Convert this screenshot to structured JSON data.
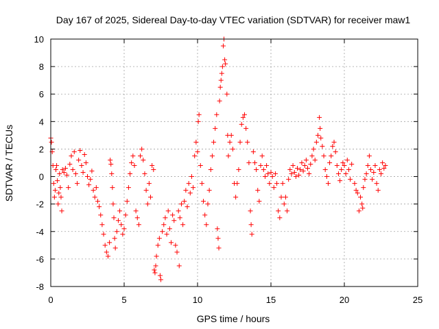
{
  "chart_data": {
    "type": "scatter",
    "title": "Day 167 of 2025, Sidereal Day-to-day VTEC variation (SDTVAR) for receiver maw1",
    "xlabel": "GPS time / hours",
    "ylabel": "SDTVAR / TECUs",
    "xlim": [
      0,
      25
    ],
    "ylim": [
      -8,
      10
    ],
    "xticks": [
      0,
      5,
      10,
      15,
      20,
      25
    ],
    "yticks": [
      -8,
      -6,
      -4,
      -2,
      0,
      2,
      4,
      6,
      8,
      10
    ],
    "xtick_labels": [
      "0",
      "5",
      "10",
      "15",
      "20",
      "25"
    ],
    "ytick_labels": [
      "-8",
      "-6",
      "-4",
      "-2",
      "0",
      "2",
      "4",
      "6",
      "8",
      "10"
    ],
    "grid": true,
    "marker": "+",
    "color": "#ff0000",
    "series": [
      {
        "name": "SDTVAR",
        "points": [
          [
            0.0,
            2.8
          ],
          [
            0.05,
            2.5
          ],
          [
            0.1,
            1.8
          ],
          [
            0.15,
            0.8
          ],
          [
            0.2,
            -0.5
          ],
          [
            0.25,
            -1.5
          ],
          [
            0.3,
            -1.0
          ],
          [
            0.35,
            0.5
          ],
          [
            0.4,
            0.8
          ],
          [
            0.45,
            -0.3
          ],
          [
            0.5,
            -2.0
          ],
          [
            0.55,
            -1.2
          ],
          [
            0.6,
            0.2
          ],
          [
            0.65,
            -0.8
          ],
          [
            0.7,
            -1.5
          ],
          [
            0.75,
            -2.5
          ],
          [
            0.8,
            0.5
          ],
          [
            0.9,
            0.3
          ],
          [
            1.0,
            0.6
          ],
          [
            1.1,
            0.1
          ],
          [
            1.2,
            -0.8
          ],
          [
            1.3,
            0.9
          ],
          [
            1.4,
            1.5
          ],
          [
            1.5,
            0.5
          ],
          [
            1.6,
            1.8
          ],
          [
            1.7,
            0.2
          ],
          [
            1.8,
            -0.5
          ],
          [
            1.9,
            1.2
          ],
          [
            2.0,
            1.9
          ],
          [
            2.1,
            0.8
          ],
          [
            2.2,
            0.3
          ],
          [
            2.3,
            1.6
          ],
          [
            2.4,
            1.0
          ],
          [
            2.5,
            0.0
          ],
          [
            2.6,
            -0.6
          ],
          [
            2.7,
            -0.2
          ],
          [
            2.8,
            0.4
          ],
          [
            2.9,
            -1.0
          ],
          [
            3.0,
            -1.5
          ],
          [
            3.1,
            -0.8
          ],
          [
            3.2,
            -1.8
          ],
          [
            3.3,
            -2.2
          ],
          [
            3.4,
            -2.8
          ],
          [
            3.5,
            -3.5
          ],
          [
            3.6,
            -4.2
          ],
          [
            3.7,
            -5.0
          ],
          [
            3.8,
            -5.5
          ],
          [
            3.9,
            -5.8
          ],
          [
            4.0,
            -4.8
          ],
          [
            4.05,
            1.2
          ],
          [
            4.1,
            0.9
          ],
          [
            4.15,
            0.2
          ],
          [
            4.2,
            -0.8
          ],
          [
            4.25,
            -2.0
          ],
          [
            4.3,
            -3.0
          ],
          [
            4.35,
            -4.5
          ],
          [
            4.4,
            -5.2
          ],
          [
            4.5,
            -4.0
          ],
          [
            4.6,
            -3.2
          ],
          [
            4.7,
            -2.5
          ],
          [
            4.8,
            -3.5
          ],
          [
            4.9,
            -4.2
          ],
          [
            5.0,
            -3.8
          ],
          [
            5.1,
            -2.8
          ],
          [
            5.2,
            -1.8
          ],
          [
            5.3,
            -0.8
          ],
          [
            5.4,
            0.2
          ],
          [
            5.5,
            1.0
          ],
          [
            5.6,
            1.5
          ],
          [
            5.7,
            0.8
          ],
          [
            5.8,
            -2.5
          ],
          [
            5.9,
            -3.0
          ],
          [
            6.0,
            -3.5
          ],
          [
            6.1,
            1.5
          ],
          [
            6.2,
            2.0
          ],
          [
            6.3,
            1.2
          ],
          [
            6.4,
            0.2
          ],
          [
            6.5,
            -1.0
          ],
          [
            6.6,
            -2.0
          ],
          [
            6.7,
            -0.5
          ],
          [
            6.8,
            -1.5
          ],
          [
            6.9,
            0.8
          ],
          [
            7.0,
            0.5
          ],
          [
            7.05,
            -6.8
          ],
          [
            7.1,
            -7.0
          ],
          [
            7.15,
            -6.5
          ],
          [
            7.2,
            -5.8
          ],
          [
            7.3,
            -5.0
          ],
          [
            7.4,
            -4.5
          ],
          [
            7.45,
            -7.2
          ],
          [
            7.5,
            -7.5
          ],
          [
            7.6,
            -4.0
          ],
          [
            7.7,
            -3.5
          ],
          [
            7.8,
            -3.0
          ],
          [
            7.9,
            -4.2
          ],
          [
            8.0,
            -2.5
          ],
          [
            8.1,
            -3.8
          ],
          [
            8.2,
            -4.8
          ],
          [
            8.3,
            -2.8
          ],
          [
            8.4,
            -3.2
          ],
          [
            8.5,
            -5.0
          ],
          [
            8.6,
            -5.5
          ],
          [
            8.7,
            -2.5
          ],
          [
            8.75,
            -6.5
          ],
          [
            8.8,
            -3.0
          ],
          [
            8.9,
            -2.0
          ],
          [
            9.0,
            -3.5
          ],
          [
            9.1,
            -1.8
          ],
          [
            9.2,
            -1.0
          ],
          [
            9.3,
            -2.2
          ],
          [
            9.4,
            -0.5
          ],
          [
            9.5,
            -1.2
          ],
          [
            9.6,
            0.0
          ],
          [
            9.7,
            -0.8
          ],
          [
            9.8,
            1.5
          ],
          [
            9.9,
            2.5
          ],
          [
            10.0,
            1.8
          ],
          [
            10.05,
            4.0
          ],
          [
            10.1,
            4.5
          ],
          [
            10.2,
            0.8
          ],
          [
            10.3,
            -0.5
          ],
          [
            10.4,
            -1.8
          ],
          [
            10.5,
            -2.8
          ],
          [
            10.6,
            -3.5
          ],
          [
            10.7,
            -2.0
          ],
          [
            10.8,
            -1.0
          ],
          [
            10.9,
            0.5
          ],
          [
            11.0,
            1.5
          ],
          [
            11.1,
            2.5
          ],
          [
            11.2,
            3.5
          ],
          [
            11.3,
            4.5
          ],
          [
            11.35,
            -3.8
          ],
          [
            11.4,
            -4.5
          ],
          [
            11.45,
            -5.2
          ],
          [
            11.5,
            5.5
          ],
          [
            11.55,
            6.5
          ],
          [
            11.6,
            7.0
          ],
          [
            11.65,
            7.5
          ],
          [
            11.7,
            8.0
          ],
          [
            11.75,
            9.5
          ],
          [
            11.8,
            10.0
          ],
          [
            11.85,
            8.5
          ],
          [
            11.9,
            8.2
          ],
          [
            12.0,
            6.0
          ],
          [
            12.05,
            3.0
          ],
          [
            12.1,
            1.5
          ],
          [
            12.2,
            2.5
          ],
          [
            12.3,
            3.0
          ],
          [
            12.4,
            2.0
          ],
          [
            12.5,
            -0.5
          ],
          [
            12.6,
            -1.5
          ],
          [
            12.7,
            -0.5
          ],
          [
            12.8,
            0.5
          ],
          [
            12.9,
            2.5
          ],
          [
            13.0,
            3.8
          ],
          [
            13.1,
            4.3
          ],
          [
            13.2,
            4.5
          ],
          [
            13.3,
            3.5
          ],
          [
            13.4,
            2.5
          ],
          [
            13.5,
            1.0
          ],
          [
            13.6,
            -2.5
          ],
          [
            13.65,
            -3.5
          ],
          [
            13.7,
            -4.2
          ],
          [
            13.8,
            1.8
          ],
          [
            13.9,
            1.0
          ],
          [
            14.0,
            0.5
          ],
          [
            14.1,
            -1.0
          ],
          [
            14.2,
            -1.8
          ],
          [
            14.3,
            0.8
          ],
          [
            14.4,
            1.5
          ],
          [
            14.5,
            0.5
          ],
          [
            14.6,
            0.0
          ],
          [
            14.7,
            0.8
          ],
          [
            14.8,
            0.2
          ],
          [
            14.9,
            -0.5
          ],
          [
            15.0,
            0.3
          ],
          [
            15.1,
            0.0
          ],
          [
            15.2,
            -0.8
          ],
          [
            15.3,
            0.2
          ],
          [
            15.4,
            -0.5
          ],
          [
            15.5,
            -2.5
          ],
          [
            15.6,
            -3.0
          ],
          [
            15.7,
            -1.5
          ],
          [
            15.8,
            -0.5
          ],
          [
            15.9,
            -2.0
          ],
          [
            16.0,
            -1.5
          ],
          [
            16.1,
            -2.5
          ],
          [
            16.2,
            -0.2
          ],
          [
            16.3,
            0.5
          ],
          [
            16.4,
            0.2
          ],
          [
            16.5,
            0.8
          ],
          [
            16.6,
            0.3
          ],
          [
            16.7,
            0.0
          ],
          [
            16.8,
            0.6
          ],
          [
            16.9,
            0.1
          ],
          [
            17.0,
            0.5
          ],
          [
            17.1,
            1.0
          ],
          [
            17.2,
            0.4
          ],
          [
            17.3,
            0.8
          ],
          [
            17.4,
            1.2
          ],
          [
            17.5,
            0.6
          ],
          [
            17.6,
            0.2
          ],
          [
            17.7,
            0.9
          ],
          [
            17.8,
            1.5
          ],
          [
            17.9,
            2.0
          ],
          [
            18.0,
            1.2
          ],
          [
            18.1,
            2.5
          ],
          [
            18.2,
            3.0
          ],
          [
            18.3,
            4.3
          ],
          [
            18.35,
            3.5
          ],
          [
            18.4,
            2.8
          ],
          [
            18.5,
            2.2
          ],
          [
            18.6,
            1.5
          ],
          [
            18.7,
            0.5
          ],
          [
            18.8,
            0.0
          ],
          [
            18.9,
            -0.5
          ],
          [
            19.0,
            1.0
          ],
          [
            19.1,
            1.5
          ],
          [
            19.2,
            2.2
          ],
          [
            19.3,
            2.5
          ],
          [
            19.4,
            1.8
          ],
          [
            19.5,
            0.8
          ],
          [
            19.6,
            0.2
          ],
          [
            19.7,
            -0.3
          ],
          [
            19.8,
            0.5
          ],
          [
            19.9,
            1.0
          ],
          [
            20.0,
            0.8
          ],
          [
            20.1,
            0.2
          ],
          [
            20.2,
            1.2
          ],
          [
            20.3,
            0.5
          ],
          [
            20.4,
            -0.2
          ],
          [
            20.5,
            0.9
          ],
          [
            20.7,
            -0.5
          ],
          [
            20.8,
            -1.0
          ],
          [
            20.9,
            -1.2
          ],
          [
            21.0,
            -2.5
          ],
          [
            21.1,
            -1.5
          ],
          [
            21.2,
            -2.0
          ],
          [
            21.25,
            -2.3
          ],
          [
            21.3,
            -0.8
          ],
          [
            21.4,
            -0.2
          ],
          [
            21.5,
            0.2
          ],
          [
            21.6,
            0.8
          ],
          [
            21.7,
            1.5
          ],
          [
            21.8,
            0.5
          ],
          [
            21.9,
            -0.2
          ],
          [
            22.0,
            0.3
          ],
          [
            22.1,
            0.8
          ],
          [
            22.2,
            -0.5
          ],
          [
            22.3,
            -1.0
          ],
          [
            22.4,
            0.5
          ],
          [
            22.5,
            0.2
          ],
          [
            22.6,
            1.0
          ],
          [
            22.7,
            0.6
          ],
          [
            22.8,
            0.8
          ]
        ]
      }
    ]
  }
}
